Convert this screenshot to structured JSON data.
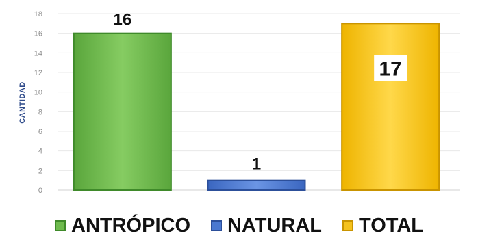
{
  "chart_data": {
    "type": "bar",
    "categories": [
      "ANTRÓPICO",
      "NATURAL",
      "TOTAL"
    ],
    "values": [
      16,
      1,
      17
    ],
    "data_labels": [
      "16",
      "1",
      "17"
    ],
    "colors": [
      "#6fbb4e",
      "#4a78d0",
      "#f5c21c"
    ],
    "edge_colors": [
      "#3f8a2a",
      "#2c4f9a",
      "#c99400"
    ],
    "ylabel": "CANTIDAD",
    "ylim": [
      0,
      18
    ],
    "yticks": [
      "0",
      "2",
      "4",
      "6",
      "8",
      "10",
      "12",
      "14",
      "16",
      "18"
    ],
    "ytick_values": [
      0,
      2,
      4,
      6,
      8,
      10,
      12,
      14,
      16,
      18
    ],
    "grid": true,
    "legend_position": "bottom"
  }
}
